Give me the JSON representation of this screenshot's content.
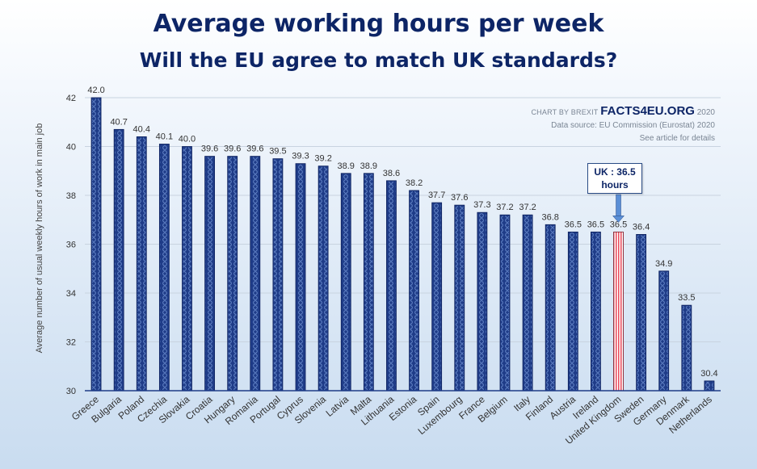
{
  "title": "Average working hours per week",
  "subtitle": "Will the EU agree to match UK standards?",
  "credit": {
    "prefix": "CHART BY BREXIT",
    "brand": "FACTS4EU.ORG",
    "year": "2020",
    "source": "Data source: EU Commission (Eurostat) 2020",
    "note": "See article for details"
  },
  "callout": {
    "line1": "UK : 36.5",
    "line2": "hours"
  },
  "colors": {
    "bar": "#1f3c88",
    "bar_edge": "#0b1f5c",
    "highlight": "#e8485a",
    "title": "#0d2566"
  },
  "chart_data": {
    "type": "bar",
    "title": "Average working hours per week",
    "subtitle": "Will the EU agree to match UK standards?",
    "xlabel": "",
    "ylabel": "Average number of usual weekly hours of work in main job",
    "ylim": [
      30,
      42
    ],
    "yticks": [
      30,
      32,
      34,
      36,
      38,
      40,
      42
    ],
    "grid": true,
    "highlight": "United Kingdom",
    "categories": [
      "Greece",
      "Bulgaria",
      "Poland",
      "Czechia",
      "Slovakia",
      "Croatia",
      "Hungary",
      "Romania",
      "Portugal",
      "Cyprus",
      "Slovenia",
      "Latvia",
      "Malta",
      "Lithuania",
      "Estonia",
      "Spain",
      "Luxembourg",
      "France",
      "Belgium",
      "Italy",
      "Finland",
      "Austria",
      "Ireland",
      "United Kingdom",
      "Sweden",
      "Germany",
      "Denmark",
      "Netherlands"
    ],
    "values": [
      42.0,
      40.7,
      40.4,
      40.1,
      40.0,
      39.6,
      39.6,
      39.6,
      39.5,
      39.3,
      39.2,
      38.9,
      38.9,
      38.6,
      38.2,
      37.7,
      37.6,
      37.3,
      37.2,
      37.2,
      36.8,
      36.5,
      36.5,
      36.5,
      36.4,
      34.9,
      33.5,
      30.4
    ],
    "value_labels": [
      "42.0",
      "40.7",
      "40.4",
      "40.1",
      "40.0",
      "39.6",
      "39.6",
      "39.6",
      "39.5",
      "39.3",
      "39.2",
      "38.9",
      "38.9",
      "38.6",
      "38.2",
      "37.7",
      "37.6",
      "37.3",
      "37.2",
      "37.2",
      "36.8",
      "36.5",
      "36.5",
      "36.5",
      "36.4",
      "34.9",
      "33.5",
      "30.4"
    ]
  }
}
